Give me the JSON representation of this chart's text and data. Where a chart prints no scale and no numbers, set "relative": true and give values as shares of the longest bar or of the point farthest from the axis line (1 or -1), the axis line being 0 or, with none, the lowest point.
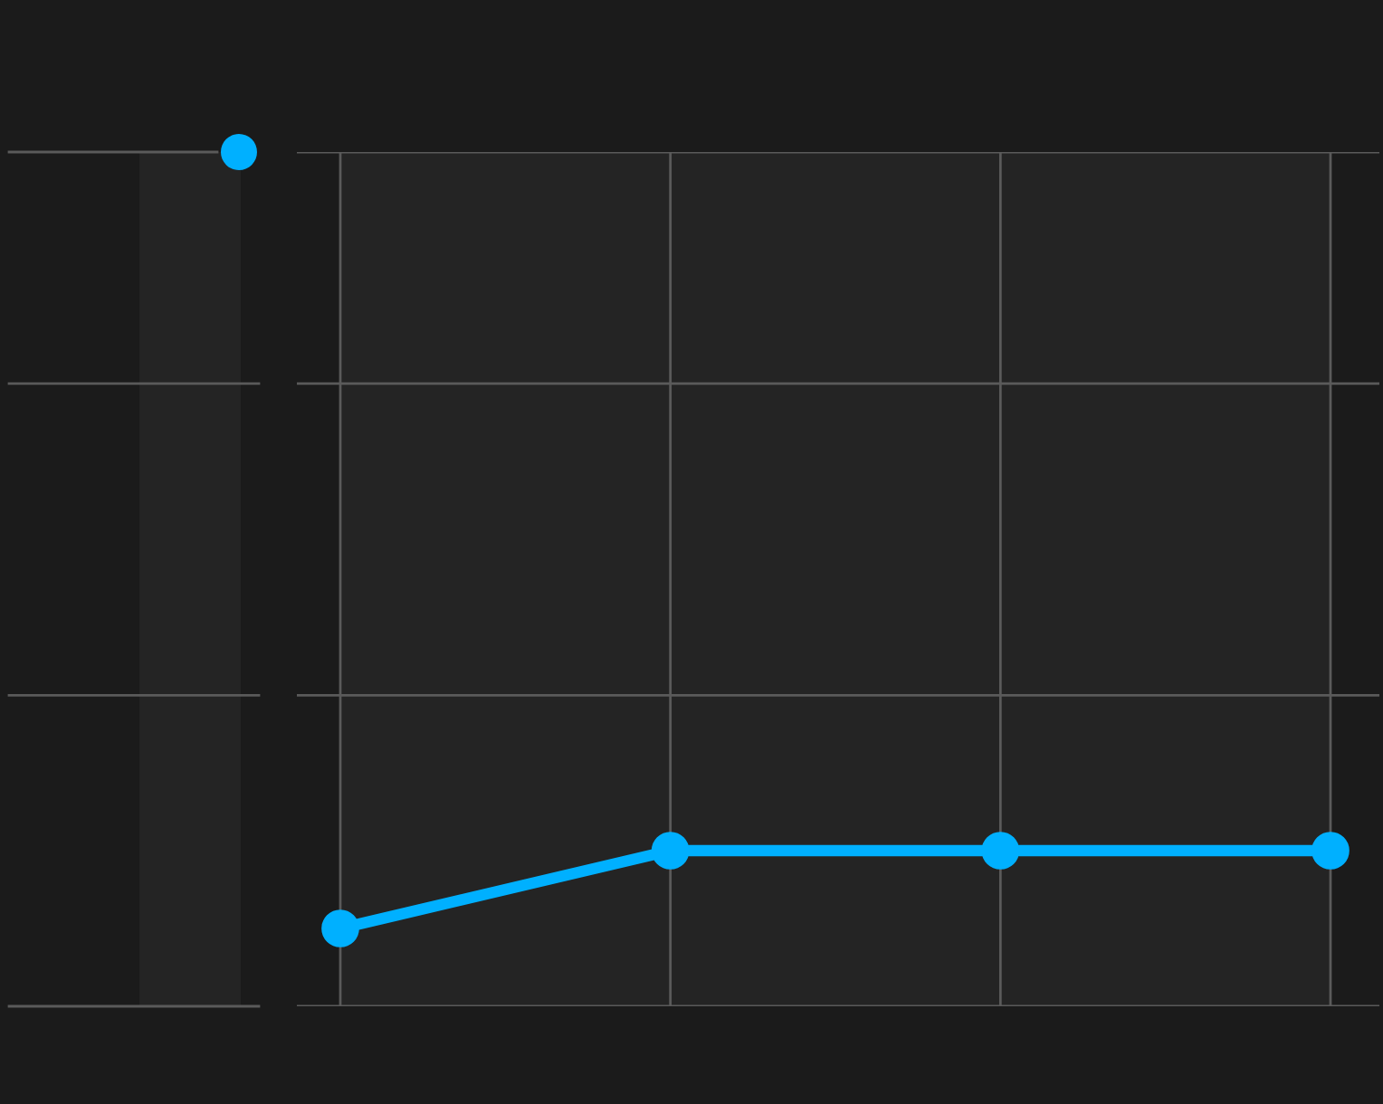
{
  "chart_data": {
    "type": "line",
    "categories": [
      null,
      null,
      null,
      null
    ],
    "relative": true,
    "grid": true,
    "marker": "circle",
    "line_style": "solid",
    "series": [
      {
        "color": "#00b0ff",
        "values": [
          0.5,
          1,
          1,
          1
        ]
      }
    ]
  }
}
